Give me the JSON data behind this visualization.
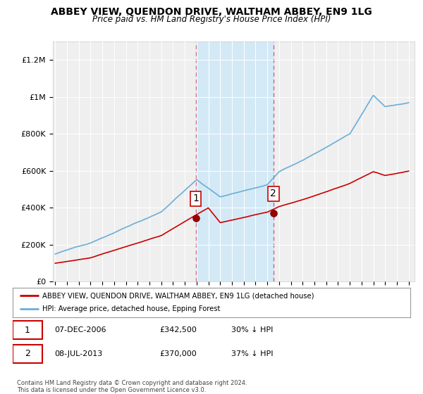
{
  "title": "ABBEY VIEW, QUENDON DRIVE, WALTHAM ABBEY, EN9 1LG",
  "subtitle": "Price paid vs. HM Land Registry's House Price Index (HPI)",
  "ylabel_ticks": [
    "£0",
    "£200K",
    "£400K",
    "£600K",
    "£800K",
    "£1M",
    "£1.2M"
  ],
  "ytick_vals": [
    0,
    200000,
    400000,
    600000,
    800000,
    1000000,
    1200000
  ],
  "ylim": [
    0,
    1300000
  ],
  "xlim_start": 1994.8,
  "xlim_end": 2025.5,
  "hpi_color": "#6baed6",
  "price_color": "#cc0000",
  "marker1_date_x": 2006.92,
  "marker1_price": 342500,
  "marker2_date_x": 2013.52,
  "marker2_price": 370000,
  "shade_x_start": 2006.92,
  "shade_x_end": 2013.52,
  "legend_label_red": "ABBEY VIEW, QUENDON DRIVE, WALTHAM ABBEY, EN9 1LG (detached house)",
  "legend_label_blue": "HPI: Average price, detached house, Epping Forest",
  "table_row1": [
    "1",
    "07-DEC-2006",
    "£342,500",
    "30% ↓ HPI"
  ],
  "table_row2": [
    "2",
    "08-JUL-2013",
    "£370,000",
    "37% ↓ HPI"
  ],
  "footnote": "Contains HM Land Registry data © Crown copyright and database right 2024.\nThis data is licensed under the Open Government Licence v3.0.",
  "background_color": "#ffffff",
  "plot_bg_color": "#efefef"
}
